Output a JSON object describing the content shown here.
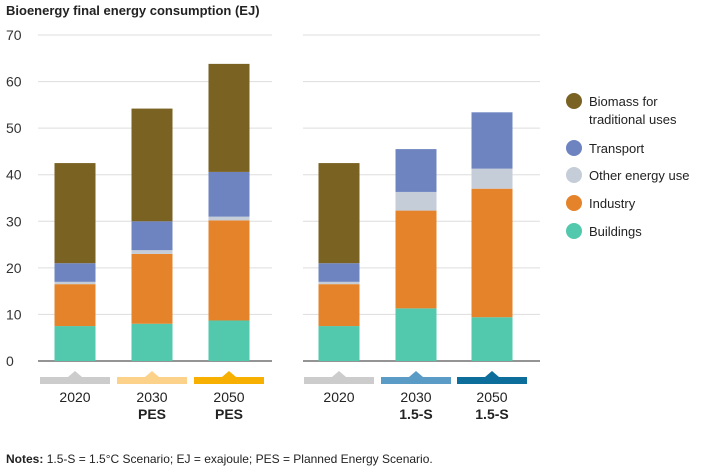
{
  "chart_data": {
    "type": "bar",
    "stacked": true,
    "title": "Bioenergy final energy consumption (EJ)",
    "ylim": [
      0,
      70
    ],
    "yticks": [
      0,
      10,
      20,
      30,
      40,
      50,
      60,
      70
    ],
    "panels": [
      {
        "categories": [
          {
            "year": "2020",
            "scenario": "",
            "marker_color": "#cccccc"
          },
          {
            "year": "2030",
            "scenario": "PES",
            "marker_color": "#fcd28a"
          },
          {
            "year": "2050",
            "scenario": "PES",
            "marker_color": "#f7b000"
          }
        ],
        "stacks": [
          {
            "Buildings": 7.5,
            "Industry": 9,
            "Other energy use": 0.5,
            "Transport": 4,
            "Biomass for traditional uses": 21.5
          },
          {
            "Buildings": 8,
            "Industry": 15,
            "Other energy use": 0.8,
            "Transport": 6.2,
            "Biomass for traditional uses": 24.2
          },
          {
            "Buildings": 8.7,
            "Industry": 21.5,
            "Other energy use": 0.8,
            "Transport": 9.6,
            "Biomass for traditional uses": 23.2
          }
        ]
      },
      {
        "categories": [
          {
            "year": "2020",
            "scenario": "",
            "marker_color": "#cccccc"
          },
          {
            "year": "2030",
            "scenario": "1.5-S",
            "marker_color": "#5b9cc6"
          },
          {
            "year": "2050",
            "scenario": "1.5-S",
            "marker_color": "#0d6e9c"
          }
        ],
        "stacks": [
          {
            "Buildings": 7.5,
            "Industry": 9,
            "Other energy use": 0.5,
            "Transport": 4,
            "Biomass for traditional uses": 21.5
          },
          {
            "Buildings": 11.3,
            "Industry": 21,
            "Other energy use": 4,
            "Transport": 9.2,
            "Biomass for traditional uses": 0
          },
          {
            "Buildings": 9.4,
            "Industry": 27.6,
            "Other energy use": 4.3,
            "Transport": 12.1,
            "Biomass for traditional uses": 0
          }
        ]
      }
    ],
    "series": [
      {
        "name": "Buildings",
        "color": "#52c8ad"
      },
      {
        "name": "Industry",
        "color": "#e5832b"
      },
      {
        "name": "Other energy use",
        "color": "#c5cdd9"
      },
      {
        "name": "Transport",
        "color": "#6e84c0"
      },
      {
        "name": "Biomass for traditional uses",
        "color": "#7a6222"
      }
    ],
    "legend": [
      {
        "lines": [
          "Biomass for",
          "traditional uses"
        ],
        "series": "Biomass for traditional uses"
      },
      {
        "lines": [
          "Transport"
        ],
        "series": "Transport"
      },
      {
        "lines": [
          "Other energy use"
        ],
        "series": "Other energy use"
      },
      {
        "lines": [
          "Industry"
        ],
        "series": "Industry"
      },
      {
        "lines": [
          "Buildings"
        ],
        "series": "Buildings"
      }
    ],
    "legend_position": "right"
  },
  "notes": {
    "label": "Notes:",
    "text": "1.5-S = 1.5°C Scenario; EJ = exajoule; PES = Planned Energy Scenario."
  }
}
